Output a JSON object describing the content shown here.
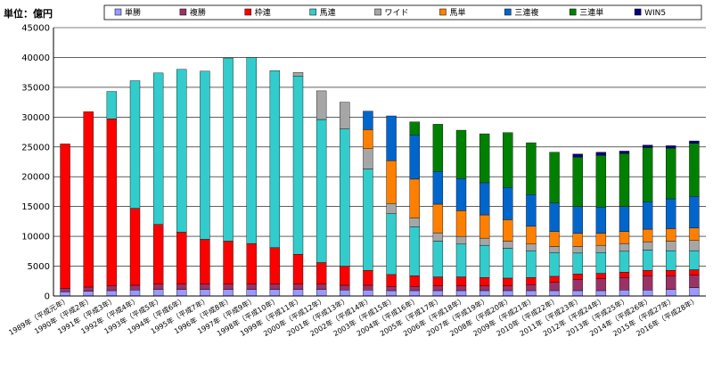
{
  "chart_data": {
    "type": "bar",
    "stacked": true,
    "ylabel": "単位：億円",
    "ylim": [
      0,
      45000
    ],
    "yticks": [
      0,
      5000,
      10000,
      15000,
      20000,
      25000,
      30000,
      35000,
      40000,
      45000
    ],
    "grid": true,
    "legend": "top",
    "categories": [
      "1989年（平成元年）",
      "1990年（平成2年）",
      "1991年（平成3年）",
      "1992年（平成4年）",
      "1993年（平成5年）",
      "1994年（平成6年）",
      "1995年（平成7年）",
      "1996年（平成8年）",
      "1997年（平成9年）",
      "1998年（平成10年）",
      "1999年（平成11年）",
      "2000年（平成12年）",
      "2001年（平成13年）",
      "2002年（平成14年）",
      "2003年（平成15年）",
      "2004年（平成16年）",
      "2005年（平成17年）",
      "2006年（平成18年）",
      "2007年（平成19年）",
      "2008年（平成20年）",
      "2009年（平成21年）",
      "2010年（平成22年）",
      "2011年（平成23年）",
      "2012年（平成24年）",
      "2013年（平成25年）",
      "2014年（平成26年）",
      "2015年（平成27年）",
      "2016年（平成28年）"
    ],
    "series": [
      {
        "name": "単勝",
        "color": "#9999ff",
        "values": [
          700,
          800,
          900,
          1000,
          1100,
          1100,
          1100,
          1100,
          1100,
          1100,
          1100,
          1100,
          1000,
          1000,
          900,
          900,
          900,
          900,
          900,
          900,
          900,
          900,
          900,
          900,
          1000,
          1000,
          1100,
          1400
        ]
      },
      {
        "name": "複勝",
        "color": "#993366",
        "values": [
          600,
          700,
          800,
          800,
          900,
          900,
          900,
          900,
          900,
          900,
          900,
          900,
          800,
          800,
          700,
          700,
          800,
          800,
          800,
          800,
          1000,
          1400,
          1900,
          2000,
          2100,
          2400,
          2300,
          2100
        ]
      },
      {
        "name": "枠連",
        "color": "#ff0000",
        "values": [
          24200,
          29400,
          28000,
          12900,
          10000,
          8700,
          7500,
          7200,
          6800,
          6100,
          5000,
          3600,
          3200,
          2500,
          2000,
          1800,
          1500,
          1500,
          1400,
          1300,
          1200,
          1000,
          900,
          900,
          900,
          900,
          900,
          900
        ]
      },
      {
        "name": "馬連",
        "color": "#33cccc",
        "values": [
          0,
          0,
          4600,
          21400,
          25400,
          27300,
          28200,
          30700,
          31200,
          29700,
          29900,
          24000,
          23000,
          17000,
          10200,
          8200,
          6000,
          5500,
          5400,
          5000,
          4500,
          4000,
          3500,
          3500,
          3500,
          3400,
          3300,
          3200
        ]
      },
      {
        "name": "ワイド",
        "color": "#a6a6a6",
        "values": [
          0,
          0,
          0,
          0,
          0,
          0,
          0,
          0,
          0,
          0,
          600,
          4800,
          4500,
          3400,
          1700,
          1500,
          1400,
          1300,
          1200,
          1200,
          1100,
          1000,
          1100,
          1200,
          1300,
          1400,
          1600,
          1700
        ]
      },
      {
        "name": "馬単",
        "color": "#ff8000",
        "values": [
          0,
          0,
          0,
          0,
          0,
          0,
          0,
          0,
          0,
          0,
          0,
          0,
          0,
          3200,
          7200,
          6500,
          4800,
          4300,
          3900,
          3600,
          3000,
          2500,
          2200,
          2000,
          2000,
          2100,
          2100,
          2100
        ]
      },
      {
        "name": "三連複",
        "color": "#0066cc",
        "values": [
          0,
          0,
          0,
          0,
          0,
          0,
          0,
          0,
          0,
          0,
          0,
          0,
          0,
          3100,
          7500,
          7400,
          5500,
          5400,
          5400,
          5400,
          5300,
          4800,
          4500,
          4400,
          4200,
          4600,
          5000,
          5300
        ]
      },
      {
        "name": "三連単",
        "color": "#008000",
        "values": [
          0,
          0,
          0,
          0,
          0,
          0,
          0,
          0,
          0,
          0,
          0,
          0,
          0,
          0,
          0,
          2200,
          7900,
          8100,
          8200,
          9200,
          8700,
          8500,
          8300,
          8700,
          8900,
          9100,
          8500,
          8900
        ]
      },
      {
        "name": "WIN5",
        "color": "#000080",
        "values": [
          0,
          0,
          0,
          0,
          0,
          0,
          0,
          0,
          0,
          0,
          0,
          0,
          0,
          0,
          0,
          0,
          0,
          0,
          0,
          0,
          0,
          0,
          500,
          500,
          400,
          400,
          400,
          400
        ]
      }
    ]
  }
}
